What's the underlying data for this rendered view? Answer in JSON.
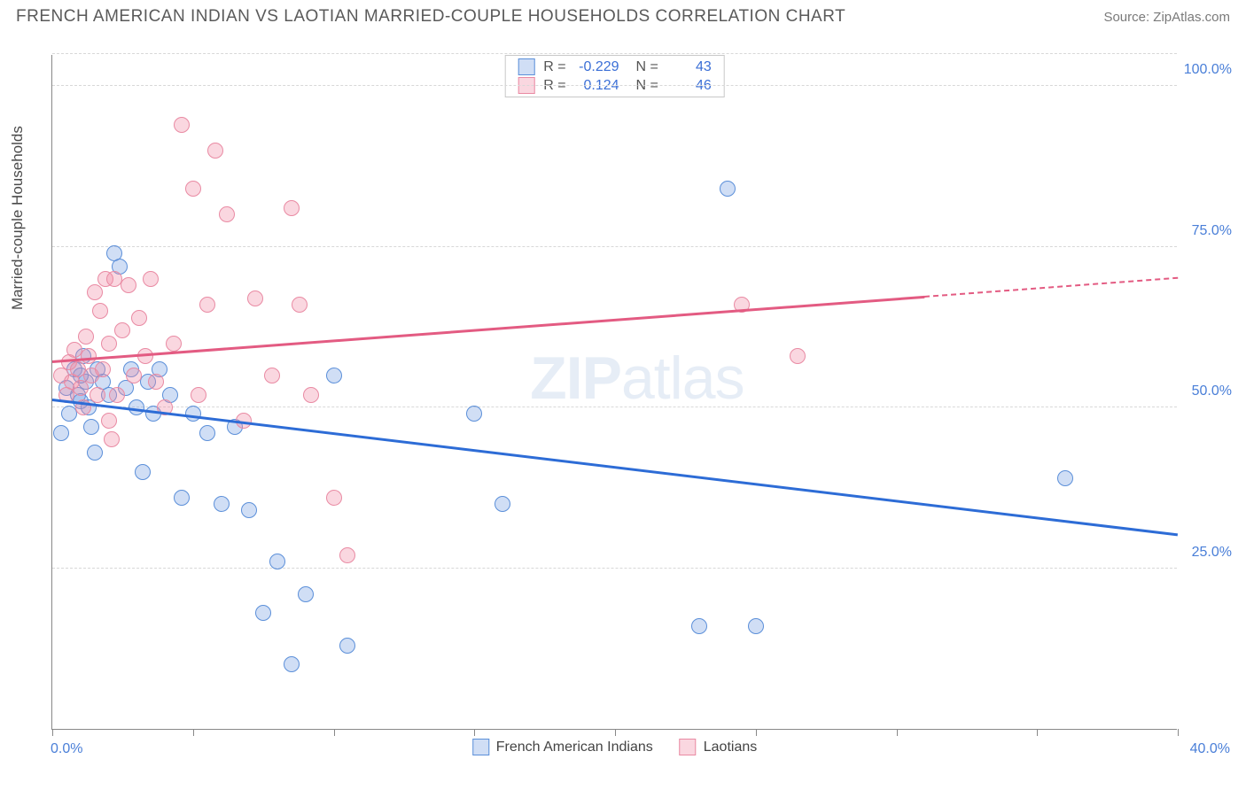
{
  "title": "FRENCH AMERICAN INDIAN VS LAOTIAN MARRIED-COUPLE HOUSEHOLDS CORRELATION CHART",
  "source": "Source: ZipAtlas.com",
  "watermark_a": "ZIP",
  "watermark_b": "atlas",
  "ylabel": "Married-couple Households",
  "chart": {
    "type": "scatter-with-trend",
    "xlim": [
      0,
      40
    ],
    "ylim": [
      0,
      105
    ],
    "xticks": [
      0,
      5,
      10,
      15,
      20,
      25,
      30,
      35,
      40
    ],
    "xtick_labels": {
      "0": "0.0%",
      "40": "40.0%"
    },
    "yticks": [
      25,
      50,
      75,
      100
    ],
    "ytick_labels": [
      "25.0%",
      "50.0%",
      "75.0%",
      "100.0%"
    ],
    "grid_color": "#d8d8d8",
    "axis_color": "#888888",
    "label_color": "#4a7fd8",
    "background": "#ffffff",
    "marker_radius": 9,
    "marker_border_width": 1.5,
    "series": [
      {
        "name": "French American Indians",
        "fill": "rgba(120,160,225,0.35)",
        "stroke": "#5b8fd9",
        "trend_color": "#2d6cd6",
        "R": "-0.229",
        "N": "43",
        "trend": {
          "x1": 0,
          "y1": 51,
          "x2": 40,
          "y2": 30,
          "dash_from_x": 40
        },
        "points": [
          [
            0.3,
            46
          ],
          [
            0.5,
            53
          ],
          [
            0.6,
            49
          ],
          [
            0.8,
            56
          ],
          [
            0.9,
            52
          ],
          [
            1.0,
            51
          ],
          [
            1.1,
            58
          ],
          [
            1.2,
            54
          ],
          [
            1.3,
            50
          ],
          [
            1.4,
            47
          ],
          [
            1.5,
            43
          ],
          [
            1.6,
            56
          ],
          [
            1.8,
            54
          ],
          [
            2.0,
            52
          ],
          [
            2.2,
            74
          ],
          [
            2.4,
            72
          ],
          [
            2.6,
            53
          ],
          [
            2.8,
            56
          ],
          [
            3.0,
            50
          ],
          [
            3.2,
            40
          ],
          [
            3.4,
            54
          ],
          [
            3.6,
            49
          ],
          [
            3.8,
            56
          ],
          [
            4.2,
            52
          ],
          [
            4.6,
            36
          ],
          [
            5.0,
            49
          ],
          [
            5.5,
            46
          ],
          [
            6.0,
            35
          ],
          [
            6.5,
            47
          ],
          [
            7.0,
            34
          ],
          [
            7.5,
            18
          ],
          [
            8.0,
            26
          ],
          [
            8.5,
            10
          ],
          [
            9.0,
            21
          ],
          [
            10.0,
            55
          ],
          [
            10.5,
            13
          ],
          [
            15.0,
            49
          ],
          [
            16.0,
            35
          ],
          [
            23.0,
            16
          ],
          [
            24.0,
            84
          ],
          [
            25.0,
            16
          ],
          [
            36.0,
            39
          ],
          [
            1.0,
            55
          ]
        ]
      },
      {
        "name": "Laotians",
        "fill": "rgba(240,140,165,0.35)",
        "stroke": "#e98aa3",
        "trend_color": "#e35b82",
        "R": "0.124",
        "N": "46",
        "trend": {
          "x1": 0,
          "y1": 57,
          "x2": 40,
          "y2": 70,
          "dash_from_x": 31
        },
        "points": [
          [
            0.3,
            55
          ],
          [
            0.5,
            52
          ],
          [
            0.6,
            57
          ],
          [
            0.7,
            54
          ],
          [
            0.8,
            59
          ],
          [
            0.9,
            56
          ],
          [
            1.0,
            53
          ],
          [
            1.1,
            50
          ],
          [
            1.2,
            61
          ],
          [
            1.3,
            58
          ],
          [
            1.4,
            55
          ],
          [
            1.5,
            68
          ],
          [
            1.6,
            52
          ],
          [
            1.7,
            65
          ],
          [
            1.8,
            56
          ],
          [
            1.9,
            70
          ],
          [
            2.0,
            60
          ],
          [
            2.1,
            45
          ],
          [
            2.2,
            70
          ],
          [
            2.3,
            52
          ],
          [
            2.5,
            62
          ],
          [
            2.7,
            69
          ],
          [
            2.9,
            55
          ],
          [
            3.1,
            64
          ],
          [
            3.3,
            58
          ],
          [
            3.5,
            70
          ],
          [
            3.7,
            54
          ],
          [
            4.0,
            50
          ],
          [
            4.3,
            60
          ],
          [
            4.6,
            94
          ],
          [
            5.0,
            84
          ],
          [
            5.2,
            52
          ],
          [
            5.5,
            66
          ],
          [
            5.8,
            90
          ],
          [
            6.2,
            80
          ],
          [
            6.8,
            48
          ],
          [
            7.2,
            67
          ],
          [
            7.8,
            55
          ],
          [
            8.5,
            81
          ],
          [
            8.8,
            66
          ],
          [
            9.2,
            52
          ],
          [
            10.0,
            36
          ],
          [
            10.5,
            27
          ],
          [
            24.5,
            66
          ],
          [
            26.5,
            58
          ],
          [
            2.0,
            48
          ]
        ]
      }
    ]
  },
  "legend_bottom": [
    "French American Indians",
    "Laotians"
  ]
}
